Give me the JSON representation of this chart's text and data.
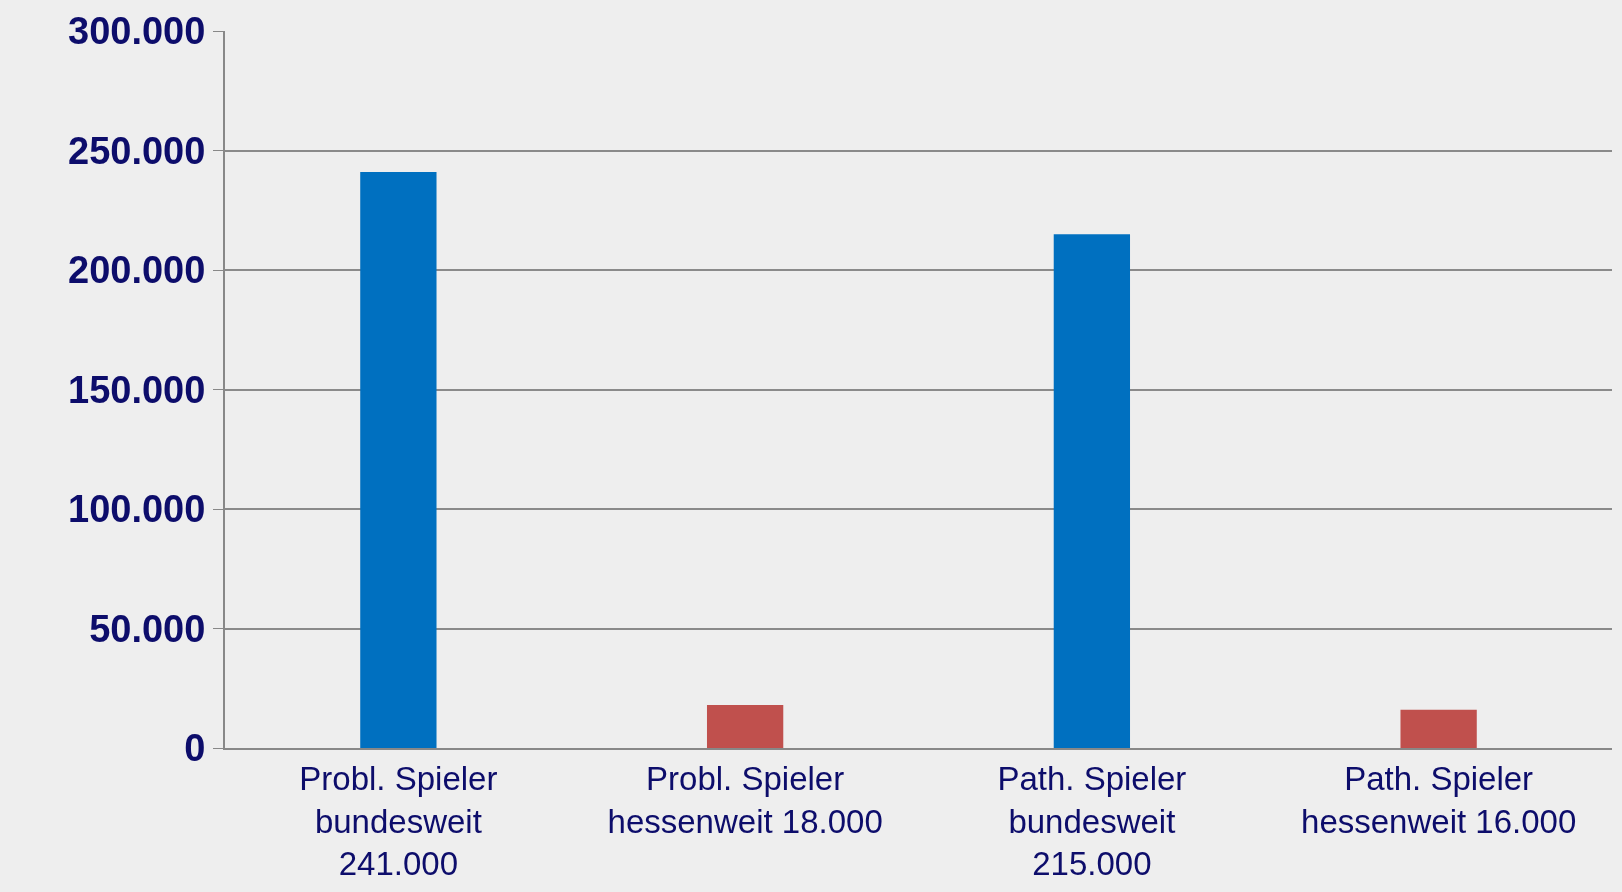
{
  "chart_data": {
    "type": "bar",
    "categories": [
      "Probl. Spieler bundesweit 241.000",
      "Probl. Spieler hessenweit 18.000",
      "Path. Spieler bundesweit 215.000",
      "Path. Spieler hessenweit 16.000"
    ],
    "values": [
      241000,
      18000,
      215000,
      16000
    ],
    "colors": [
      "#0070c0",
      "#c0504d",
      "#0070c0",
      "#c0504d"
    ],
    "ylim": [
      0,
      300000
    ],
    "yticks": [
      {
        "value": 0,
        "label": "0"
      },
      {
        "value": 50000,
        "label": "50.000"
      },
      {
        "value": 100000,
        "label": "100.000"
      },
      {
        "value": 150000,
        "label": "150.000"
      },
      {
        "value": 200000,
        "label": "200.000"
      },
      {
        "value": 250000,
        "label": "250.000"
      },
      {
        "value": 300000,
        "label": "300.000"
      }
    ],
    "grid": "y"
  }
}
